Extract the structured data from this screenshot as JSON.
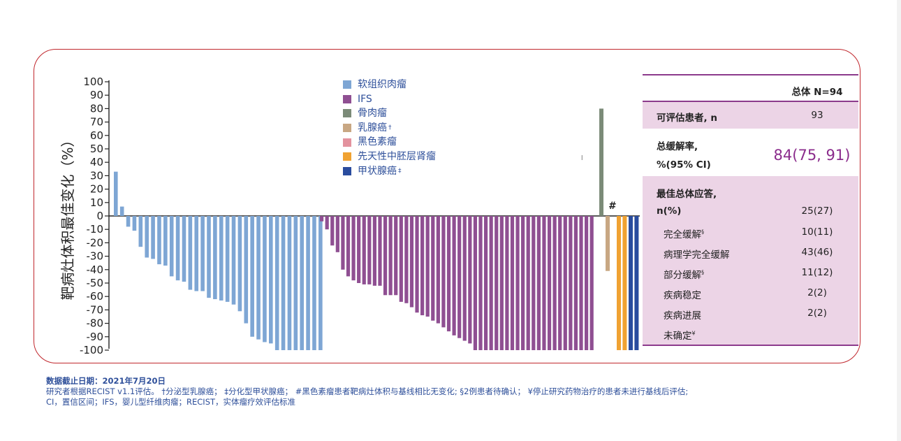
{
  "chart_data": {
    "type": "bar",
    "ylabel": "靶病灶体积最佳变化（%）",
    "ylim": [
      -100,
      100
    ],
    "yticks": [
      100,
      90,
      80,
      70,
      60,
      50,
      40,
      30,
      20,
      10,
      0,
      -10,
      -20,
      -30,
      -40,
      -50,
      -60,
      -70,
      -80,
      -90,
      -100
    ],
    "legend_position": "top-center",
    "series": [
      {
        "name": "软组织肉瘤",
        "color": "#7ea6d4",
        "values": [
          33,
          7,
          -8,
          -11,
          -23,
          -31,
          -32,
          -36,
          -37,
          -45,
          -48,
          -49,
          -55,
          -56,
          -56,
          -61,
          -62,
          -63,
          -64,
          -66,
          -71,
          -80,
          -90,
          -92,
          -94,
          -95,
          -100,
          -100,
          -100,
          -100,
          -100,
          -100,
          -100,
          -100
        ]
      },
      {
        "name": "IFS",
        "color": "#8f4f92",
        "values": [
          -4,
          -10,
          -22,
          -27,
          -40,
          -45,
          -48,
          -50,
          -51,
          -51,
          -52,
          -52,
          -59,
          -59,
          -59,
          -64,
          -65,
          -68,
          -72,
          -74,
          -75,
          -78,
          -80,
          -83,
          -86,
          -89,
          -91,
          -93,
          -95,
          -100,
          -100,
          -100,
          -100,
          -100,
          -100,
          -100,
          -100,
          -100,
          -100,
          -100,
          -100,
          -100,
          -100,
          -100,
          -100,
          -100,
          -100,
          -100,
          -100,
          -100,
          -100,
          -100
        ]
      },
      {
        "name": "骨肉瘤",
        "color": "#7b8b78",
        "values": [
          80
        ]
      },
      {
        "name": "乳腺癌",
        "sup": "†",
        "color": "#c8a783",
        "values": [
          -41
        ]
      },
      {
        "name": "黑色素瘤",
        "color": "#e3929e",
        "values": [
          0
        ]
      },
      {
        "name": "先天性中胚层肾瘤",
        "color": "#f0a232",
        "values": [
          -100,
          -100
        ]
      },
      {
        "name": "甲状腺癌",
        "sup": "‡",
        "color": "#2a4c9e",
        "values": [
          -100,
          -100
        ]
      }
    ],
    "annotations": [
      "#"
    ]
  },
  "table": {
    "header": "总体 N=94",
    "evaluable_label": "可评估患者, n",
    "evaluable_value": "93",
    "orr_label_1": "总缓解率,",
    "orr_label_2": "%(95% CI)",
    "orr_value": "84(75, 91)",
    "bor_label_1": "最佳总体应答,",
    "bor_label_2": "n(%)",
    "bor_value": "25(27)",
    "rows": [
      {
        "label": "完全缓解",
        "sup": "§",
        "value": "10(11)"
      },
      {
        "label": "病理学完全缓解",
        "sup": "",
        "value": "43(46)"
      },
      {
        "label": "部分缓解",
        "sup": "§",
        "value": "11(12)"
      },
      {
        "label": "疾病稳定",
        "sup": "",
        "value": "2(2)"
      },
      {
        "label": "疾病进展",
        "sup": "",
        "value": "2(2)"
      },
      {
        "label": "未确定",
        "sup": "¥",
        "value": ""
      }
    ]
  },
  "footer": {
    "line1": "数据截止日期：2021年7月20日",
    "line2": "研究者根据RECIST v1.1评估。 †分泌型乳腺癌；   ‡分化型甲状腺癌；   #黑色素瘤患者靶病灶体积与基线相比无变化; §2例患者待确认；   ¥停止研究药物治疗的患者未进行基线后评估;",
    "line3": "CI，置信区间；IFS，婴儿型纤维肉瘤；RECIST，实体瘤疗效评估标准"
  },
  "misc": {
    "hash_mark": "#",
    "stray_mark": "l"
  }
}
